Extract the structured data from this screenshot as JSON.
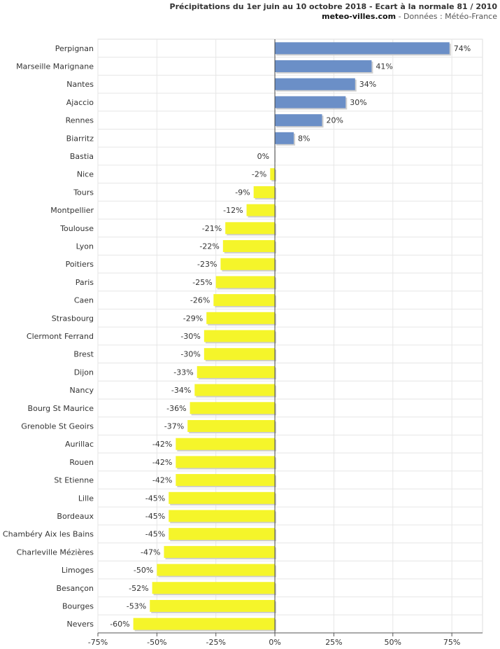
{
  "header": {
    "title": "Précipitations du 1er juin au 10 octobre 2018 - Ecart à la normale 81 / 2010",
    "site": "meteo-villes.com",
    "source": "- Données : Météo-France"
  },
  "colors": {
    "positive": "#6b8fc7",
    "negative": "#f5f52a",
    "grid": "#e6e6e6",
    "axis": "#555555"
  },
  "chart_data": {
    "type": "bar",
    "orientation": "horizontal",
    "title": "Précipitations du 1er juin au 10 octobre 2018 - Ecart à la normale 81 / 2010",
    "xlim": [
      -75,
      88
    ],
    "ticks": [
      -75,
      -50,
      -25,
      0,
      25,
      50,
      75
    ],
    "tick_labels": [
      "-75%",
      "-50%",
      "-25%",
      "0%",
      "25%",
      "50%",
      "75%"
    ],
    "grid": true,
    "categories": [
      "Perpignan",
      "Marseille Marignane",
      "Nantes",
      "Ajaccio",
      "Rennes",
      "Biarritz",
      "Bastia",
      "Nice",
      "Tours",
      "Montpellier",
      "Toulouse",
      "Lyon",
      "Poitiers",
      "Paris",
      "Caen",
      "Strasbourg",
      "Clermont Ferrand",
      "Brest",
      "Dijon",
      "Nancy",
      "Bourg St Maurice",
      "Grenoble St Geoirs",
      "Aurillac",
      "Rouen",
      "St Etienne",
      "Lille",
      "Bordeaux",
      "Chambéry Aix les Bains",
      "Charleville Mézières",
      "Limoges",
      "Besançon",
      "Bourges",
      "Nevers"
    ],
    "values": [
      74,
      41,
      34,
      30,
      20,
      8,
      0,
      -2,
      -9,
      -12,
      -21,
      -22,
      -23,
      -25,
      -26,
      -29,
      -30,
      -30,
      -33,
      -34,
      -36,
      -37,
      -42,
      -42,
      -42,
      -45,
      -45,
      -45,
      -47,
      -50,
      -52,
      -53,
      -60
    ],
    "value_labels": [
      "74%",
      "41%",
      "34%",
      "30%",
      "20%",
      "8%",
      "0%",
      "-2%",
      "-9%",
      "-12%",
      "-21%",
      "-22%",
      "-23%",
      "-25%",
      "-26%",
      "-29%",
      "-30%",
      "-30%",
      "-33%",
      "-34%",
      "-36%",
      "-37%",
      "-42%",
      "-42%",
      "-42%",
      "-45%",
      "-45%",
      "-45%",
      "-47%",
      "-50%",
      "-52%",
      "-53%",
      "-60%"
    ]
  }
}
